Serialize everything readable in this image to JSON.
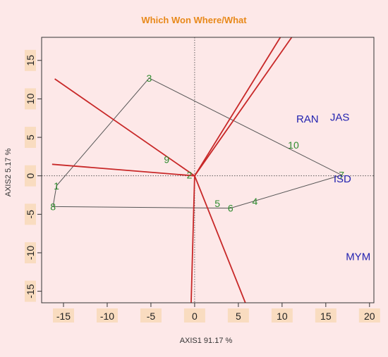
{
  "colors": {
    "background": "#fde8e8",
    "title": "#e8891a",
    "genotype": "#2e8b2e",
    "environment": "#2323b0",
    "ray": "#c82828",
    "polygon": "#555555",
    "frame": "#333333"
  },
  "chart_data": {
    "type": "scatter",
    "title": "Which Won Where/What",
    "xlabel": "AXIS1 91.17 %",
    "ylabel": "AXIS2 5.17 %",
    "xlim": [
      -17.5,
      20.5
    ],
    "ylim": [
      -16.5,
      18
    ],
    "x_ticks": [
      -15,
      -10,
      -5,
      0,
      5,
      10,
      15,
      20
    ],
    "y_ticks": [
      -15,
      -10,
      -5,
      0,
      5,
      10,
      15
    ],
    "reference_lines": {
      "x": 0,
      "y": 0,
      "style": "dotted"
    },
    "genotypes": [
      {
        "label": "1",
        "x": -15.8,
        "y": -1.3
      },
      {
        "label": "2",
        "x": -0.6,
        "y": 0.1
      },
      {
        "label": "3",
        "x": -5.2,
        "y": 12.7
      },
      {
        "label": "4",
        "x": 6.9,
        "y": -3.3
      },
      {
        "label": "5",
        "x": 2.6,
        "y": -3.6
      },
      {
        "label": "6",
        "x": 4.1,
        "y": -4.2
      },
      {
        "label": "7",
        "x": 16.8,
        "y": 0.1
      },
      {
        "label": "8",
        "x": -16.2,
        "y": -4.0
      },
      {
        "label": "9",
        "x": -3.2,
        "y": 2.1
      },
      {
        "label": "10",
        "x": 11.3,
        "y": 4.0
      }
    ],
    "environments": [
      {
        "label": "RAN",
        "x": 12.9,
        "y": 7.4
      },
      {
        "label": "JAS",
        "x": 16.6,
        "y": 7.6
      },
      {
        "label": "ISD",
        "x": 16.9,
        "y": -0.4
      },
      {
        "label": "MYM",
        "x": 18.7,
        "y": -10.5
      }
    ],
    "polygon": [
      [
        -5.2,
        12.7
      ],
      [
        16.8,
        0.1
      ],
      [
        4.1,
        -4.2
      ],
      [
        -16.2,
        -4.0
      ],
      [
        -15.8,
        -1.3
      ],
      [
        -5.2,
        12.7
      ]
    ],
    "rays": [
      {
        "x": -16.0,
        "y": 12.6
      },
      {
        "x": -16.3,
        "y": 1.5
      },
      {
        "x": 9.8,
        "y": 18.0
      },
      {
        "x": 11.1,
        "y": 18.0
      },
      {
        "x": -0.4,
        "y": -16.5
      },
      {
        "x": 5.8,
        "y": -16.5
      }
    ]
  }
}
